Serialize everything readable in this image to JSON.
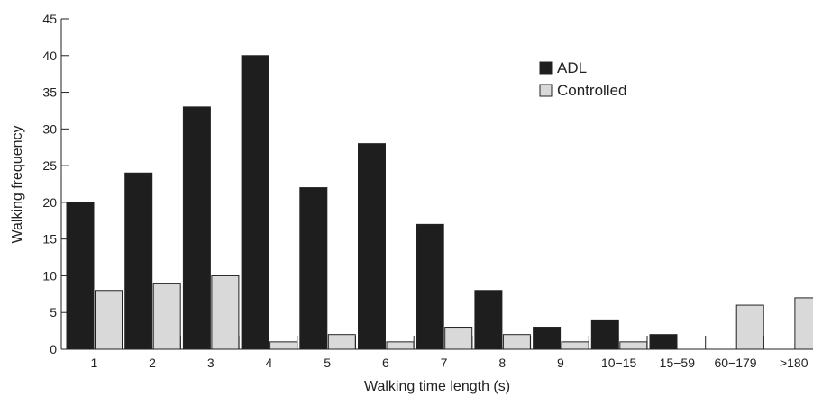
{
  "chart_data": {
    "type": "bar",
    "title": "",
    "xlabel": "Walking time length (s)",
    "ylabel": "Walking frequency",
    "ylim": [
      0,
      45
    ],
    "yticks": [
      0,
      5,
      10,
      15,
      20,
      25,
      30,
      35,
      40,
      45
    ],
    "categories": [
      "1",
      "2",
      "3",
      "4",
      "5",
      "6",
      "7",
      "8",
      "9",
      "10−15",
      "15−59",
      "60−179",
      ">180"
    ],
    "series": [
      {
        "name": "ADL",
        "color": "#1e1e1e",
        "values": [
          20,
          24,
          33,
          40,
          22,
          28,
          17,
          8,
          3,
          4,
          2,
          0,
          0
        ]
      },
      {
        "name": "Controlled",
        "color": "#d9d9d9",
        "values": [
          8,
          9,
          10,
          1,
          2,
          1,
          3,
          2,
          1,
          1,
          0,
          6,
          7
        ]
      }
    ],
    "legend_position": "top-right",
    "grid": false
  }
}
